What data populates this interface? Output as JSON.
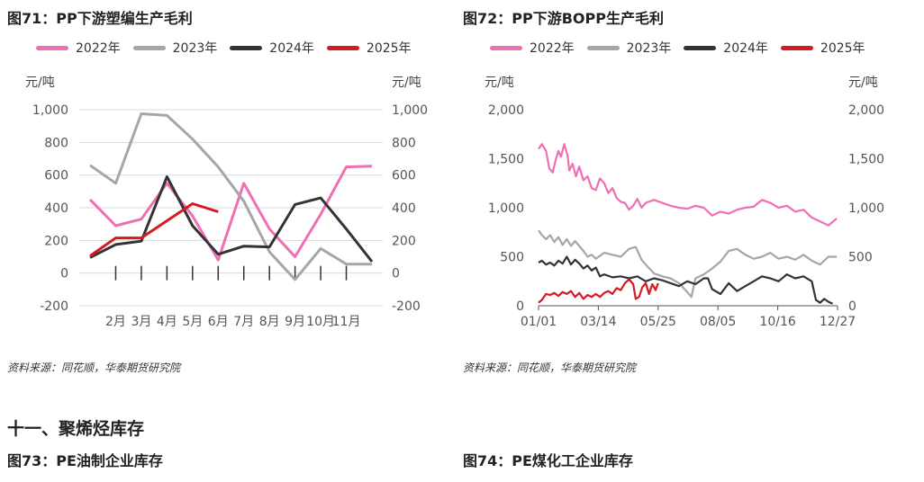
{
  "chart1": {
    "title": "图71：PP下游塑编生产毛利",
    "source": "资料来源：同花顺，华泰期货研究院",
    "left_unit": "元/吨",
    "right_unit": "元/吨"
  },
  "chart2": {
    "title": "图72：PP下游BOPP生产毛利",
    "source": "资料来源：同花顺，华泰期货研究院",
    "left_unit": "元/吨",
    "right_unit": "元/吨"
  },
  "section": {
    "title": "十一、聚烯烃库存"
  },
  "fig73": {
    "title": "图73：PE油制企业库存"
  },
  "fig74": {
    "title": "图74：PE煤化工企业库存"
  },
  "colors": {
    "2022": "#ef6fb3",
    "2023": "#a6a6a6",
    "2024": "#333333",
    "2025": "#d71a21"
  },
  "chart_data": [
    {
      "type": "line",
      "title": "图71：PP下游塑编生产毛利",
      "ylabel": "元/吨",
      "ylim": [
        -200,
        1000
      ],
      "yticks": [
        "-200",
        "0",
        "200",
        "400",
        "600",
        "800",
        "1,000"
      ],
      "xticks": [
        "2月",
        "3月",
        "4月",
        "5月",
        "6月",
        "7月",
        "8月",
        "9月",
        "10月",
        "11月"
      ],
      "grid": true,
      "legend": "top",
      "series": [
        {
          "name": "2022年",
          "color": "#ef6fb3",
          "points": [
            [
              1,
              450
            ],
            [
              2,
              290
            ],
            [
              3,
              330
            ],
            [
              4,
              550
            ],
            [
              5,
              350
            ],
            [
              6,
              80
            ],
            [
              7,
              550
            ],
            [
              8,
              270
            ],
            [
              9,
              100
            ],
            [
              10,
              360
            ],
            [
              11,
              650
            ],
            [
              12,
              655
            ]
          ]
        },
        {
          "name": "2023年",
          "color": "#a6a6a6",
          "points": [
            [
              1,
              660
            ],
            [
              2,
              550
            ],
            [
              3,
              975
            ],
            [
              4,
              965
            ],
            [
              5,
              820
            ],
            [
              6,
              650
            ],
            [
              7,
              440
            ],
            [
              8,
              130
            ],
            [
              9,
              -40
            ],
            [
              10,
              150
            ],
            [
              11,
              55
            ],
            [
              12,
              55
            ]
          ]
        },
        {
          "name": "2024年",
          "color": "#333333",
          "points": [
            [
              1,
              95
            ],
            [
              2,
              175
            ],
            [
              3,
              195
            ],
            [
              4,
              590
            ],
            [
              5,
              290
            ],
            [
              6,
              115
            ],
            [
              7,
              165
            ],
            [
              8,
              160
            ],
            [
              9,
              420
            ],
            [
              10,
              460
            ],
            [
              11,
              270
            ],
            [
              12,
              70
            ]
          ]
        },
        {
          "name": "2025年",
          "color": "#d71a21",
          "points": [
            [
              1,
              105
            ],
            [
              2,
              215
            ],
            [
              3,
              215
            ],
            [
              4,
              320
            ],
            [
              5,
              425
            ],
            [
              6,
              375
            ]
          ]
        }
      ]
    },
    {
      "type": "line",
      "title": "图72：PP下游BOPP生产毛利",
      "ylabel": "元/吨",
      "ylim": [
        0,
        2000
      ],
      "yticks": [
        "0",
        "500",
        "1,000",
        "1,500",
        "2,000"
      ],
      "xticks": [
        "01/01",
        "03/14",
        "05/25",
        "08/05",
        "10/16",
        "12/27"
      ],
      "grid": false,
      "legend": "top",
      "series": [
        {
          "name": "2022年",
          "color": "#ef6fb3",
          "points": [
            [
              1,
              1600
            ],
            [
              5,
              1650
            ],
            [
              10,
              1580
            ],
            [
              14,
              1400
            ],
            [
              18,
              1360
            ],
            [
              22,
              1500
            ],
            [
              25,
              1580
            ],
            [
              28,
              1520
            ],
            [
              32,
              1650
            ],
            [
              36,
              1530
            ],
            [
              38,
              1380
            ],
            [
              42,
              1450
            ],
            [
              46,
              1320
            ],
            [
              50,
              1420
            ],
            [
              55,
              1280
            ],
            [
              60,
              1320
            ],
            [
              65,
              1200
            ],
            [
              70,
              1180
            ],
            [
              75,
              1300
            ],
            [
              80,
              1250
            ],
            [
              85,
              1150
            ],
            [
              90,
              1200
            ],
            [
              95,
              1100
            ],
            [
              100,
              1060
            ],
            [
              105,
              1050
            ],
            [
              110,
              980
            ],
            [
              115,
              1020
            ],
            [
              120,
              1090
            ],
            [
              125,
              1000
            ],
            [
              130,
              1050
            ],
            [
              140,
              1080
            ],
            [
              150,
              1050
            ],
            [
              160,
              1020
            ],
            [
              170,
              1000
            ],
            [
              180,
              990
            ],
            [
              190,
              1020
            ],
            [
              200,
              1000
            ],
            [
              210,
              920
            ],
            [
              220,
              960
            ],
            [
              230,
              940
            ],
            [
              240,
              980
            ],
            [
              250,
              1000
            ],
            [
              260,
              1010
            ],
            [
              270,
              1080
            ],
            [
              280,
              1050
            ],
            [
              290,
              1000
            ],
            [
              300,
              1020
            ],
            [
              310,
              960
            ],
            [
              320,
              980
            ],
            [
              330,
              900
            ],
            [
              340,
              860
            ],
            [
              350,
              820
            ],
            [
              360,
              890
            ]
          ]
        },
        {
          "name": "2023年",
          "color": "#a6a6a6",
          "points": [
            [
              1,
              770
            ],
            [
              5,
              720
            ],
            [
              10,
              680
            ],
            [
              15,
              720
            ],
            [
              20,
              650
            ],
            [
              25,
              700
            ],
            [
              30,
              620
            ],
            [
              35,
              680
            ],
            [
              40,
              610
            ],
            [
              45,
              660
            ],
            [
              50,
              610
            ],
            [
              55,
              560
            ],
            [
              60,
              500
            ],
            [
              65,
              520
            ],
            [
              70,
              480
            ],
            [
              80,
              540
            ],
            [
              90,
              520
            ],
            [
              100,
              500
            ],
            [
              110,
              580
            ],
            [
              118,
              600
            ],
            [
              125,
              470
            ],
            [
              130,
              420
            ],
            [
              140,
              330
            ],
            [
              150,
              300
            ],
            [
              160,
              280
            ],
            [
              170,
              230
            ],
            [
              180,
              140
            ],
            [
              185,
              90
            ],
            [
              190,
              280
            ],
            [
              200,
              320
            ],
            [
              210,
              380
            ],
            [
              220,
              450
            ],
            [
              230,
              560
            ],
            [
              240,
              580
            ],
            [
              250,
              520
            ],
            [
              260,
              480
            ],
            [
              270,
              500
            ],
            [
              280,
              540
            ],
            [
              290,
              480
            ],
            [
              300,
              500
            ],
            [
              310,
              470
            ],
            [
              320,
              520
            ],
            [
              330,
              460
            ],
            [
              340,
              420
            ],
            [
              350,
              500
            ],
            [
              360,
              500
            ]
          ]
        },
        {
          "name": "2024年",
          "color": "#333333",
          "points": [
            [
              1,
              440
            ],
            [
              5,
              460
            ],
            [
              10,
              420
            ],
            [
              15,
              440
            ],
            [
              20,
              410
            ],
            [
              25,
              460
            ],
            [
              30,
              430
            ],
            [
              35,
              500
            ],
            [
              40,
              420
            ],
            [
              45,
              470
            ],
            [
              50,
              430
            ],
            [
              55,
              380
            ],
            [
              60,
              410
            ],
            [
              65,
              360
            ],
            [
              70,
              390
            ],
            [
              75,
              300
            ],
            [
              80,
              320
            ],
            [
              90,
              290
            ],
            [
              100,
              300
            ],
            [
              110,
              280
            ],
            [
              120,
              300
            ],
            [
              130,
              250
            ],
            [
              140,
              280
            ],
            [
              150,
              260
            ],
            [
              160,
              230
            ],
            [
              170,
              200
            ],
            [
              180,
              250
            ],
            [
              190,
              220
            ],
            [
              200,
              280
            ],
            [
              205,
              280
            ],
            [
              210,
              170
            ],
            [
              220,
              120
            ],
            [
              230,
              230
            ],
            [
              240,
              150
            ],
            [
              250,
              200
            ],
            [
              260,
              250
            ],
            [
              270,
              300
            ],
            [
              280,
              280
            ],
            [
              290,
              250
            ],
            [
              300,
              320
            ],
            [
              310,
              280
            ],
            [
              320,
              300
            ],
            [
              330,
              250
            ],
            [
              335,
              60
            ],
            [
              340,
              30
            ],
            [
              345,
              70
            ],
            [
              350,
              40
            ],
            [
              355,
              20
            ]
          ]
        },
        {
          "name": "2025年",
          "color": "#d71a21",
          "points": [
            [
              1,
              30
            ],
            [
              5,
              60
            ],
            [
              10,
              120
            ],
            [
              15,
              110
            ],
            [
              20,
              130
            ],
            [
              25,
              100
            ],
            [
              30,
              140
            ],
            [
              35,
              120
            ],
            [
              40,
              150
            ],
            [
              45,
              90
            ],
            [
              50,
              130
            ],
            [
              55,
              70
            ],
            [
              60,
              110
            ],
            [
              65,
              90
            ],
            [
              70,
              120
            ],
            [
              75,
              90
            ],
            [
              80,
              130
            ],
            [
              85,
              150
            ],
            [
              90,
              120
            ],
            [
              95,
              180
            ],
            [
              100,
              160
            ],
            [
              105,
              230
            ],
            [
              110,
              270
            ],
            [
              115,
              220
            ],
            [
              118,
              70
            ],
            [
              122,
              90
            ],
            [
              126,
              190
            ],
            [
              130,
              230
            ],
            [
              134,
              120
            ],
            [
              138,
              220
            ],
            [
              142,
              160
            ],
            [
              145,
              230
            ]
          ]
        }
      ]
    }
  ]
}
